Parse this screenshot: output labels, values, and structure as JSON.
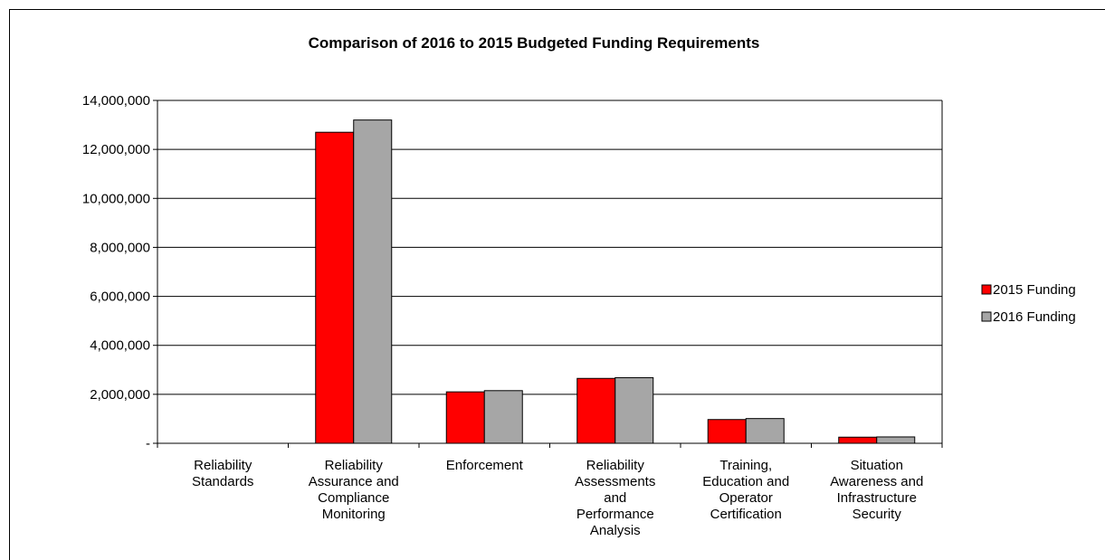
{
  "chart_data": {
    "type": "bar",
    "title": "Comparison of 2016 to 2015 Budgeted Funding Requirements",
    "xlabel": "",
    "ylabel": "",
    "ylim": [
      0,
      14000000
    ],
    "yticks": [
      0,
      2000000,
      4000000,
      6000000,
      8000000,
      10000000,
      12000000,
      14000000
    ],
    "ytick_labels": [
      "-",
      "2,000,000",
      "4,000,000",
      "6,000,000",
      "8,000,000",
      "10,000,000",
      "12,000,000",
      "14,000,000"
    ],
    "grid": true,
    "legend_position": "right",
    "categories": [
      [
        "Reliability",
        "Standards"
      ],
      [
        "Reliability",
        "Assurance and",
        "Compliance",
        "Monitoring"
      ],
      [
        "Enforcement"
      ],
      [
        "Reliability",
        "Assessments",
        "and",
        "Performance",
        "Analysis"
      ],
      [
        "Training,",
        "Education and",
        "Operator",
        "Certification"
      ],
      [
        "Situation",
        "Awareness and",
        "Infrastructure",
        "Security"
      ]
    ],
    "series": [
      {
        "name": "2015 Funding",
        "color": "#ff0000",
        "values": [
          0,
          12700000,
          2100000,
          2650000,
          970000,
          250000
        ]
      },
      {
        "name": "2016 Funding",
        "color": "#a6a6a6",
        "values": [
          0,
          13200000,
          2150000,
          2680000,
          1010000,
          260000
        ]
      }
    ]
  }
}
